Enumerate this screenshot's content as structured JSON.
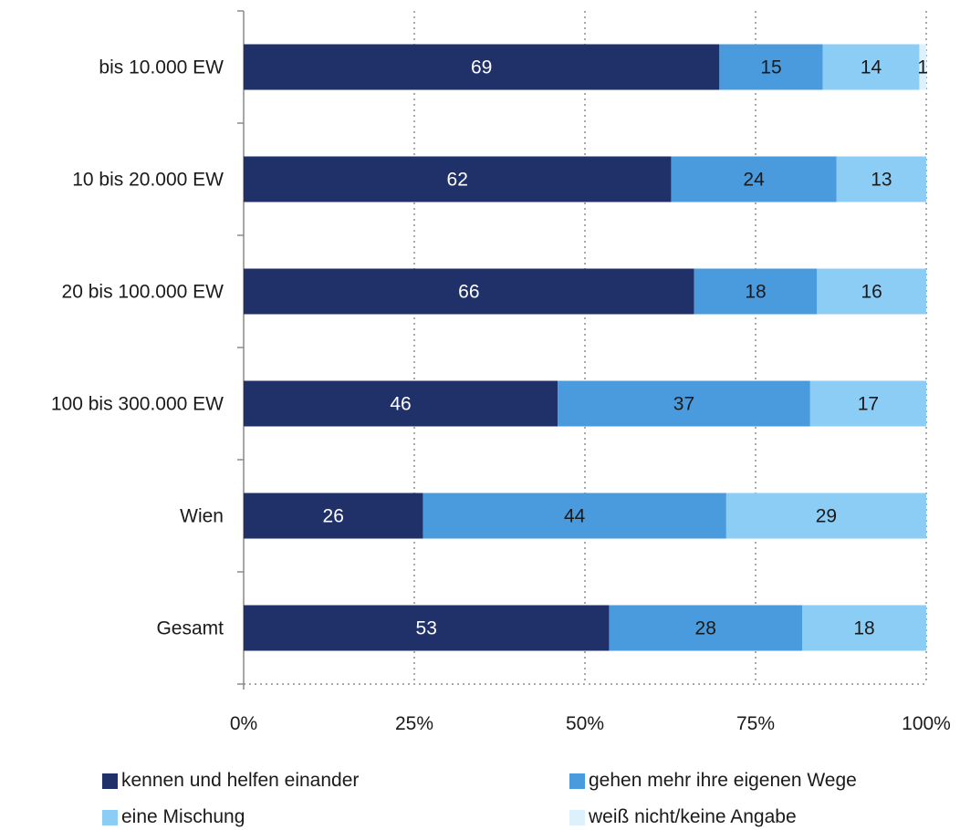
{
  "chart_data": {
    "type": "bar",
    "orientation": "horizontal",
    "stacked": "percent",
    "categories": [
      "bis 10.000 EW",
      "10 bis 20.000 EW",
      "20 bis 100.000 EW",
      "100 bis 300.000 EW",
      "Wien",
      "Gesamt"
    ],
    "series": [
      {
        "name": "kennen und helfen einander",
        "color": "#1f3168",
        "values": [
          69,
          62,
          66,
          46,
          26,
          53
        ],
        "label_color": "#ffffff"
      },
      {
        "name": "gehen mehr ihre eigenen Wege",
        "color": "#4a9ade",
        "values": [
          15,
          24,
          18,
          37,
          44,
          28
        ],
        "label_color": "#1a1a1a"
      },
      {
        "name": "eine Mischung",
        "color": "#8ccdf5",
        "values": [
          14,
          13,
          16,
          17,
          29,
          18
        ],
        "label_color": "#1a1a1a"
      },
      {
        "name": "weiß nicht/keine Angabe",
        "color": "#dcf1fb",
        "values": [
          1,
          0,
          0,
          0,
          0,
          0
        ],
        "label_color": "#1a1a1a"
      }
    ],
    "x_ticks": [
      "0%",
      "25%",
      "50%",
      "75%",
      "100%"
    ],
    "xlim": [
      0,
      100
    ],
    "grid": "vertical dotted",
    "legend_position": "bottom"
  }
}
